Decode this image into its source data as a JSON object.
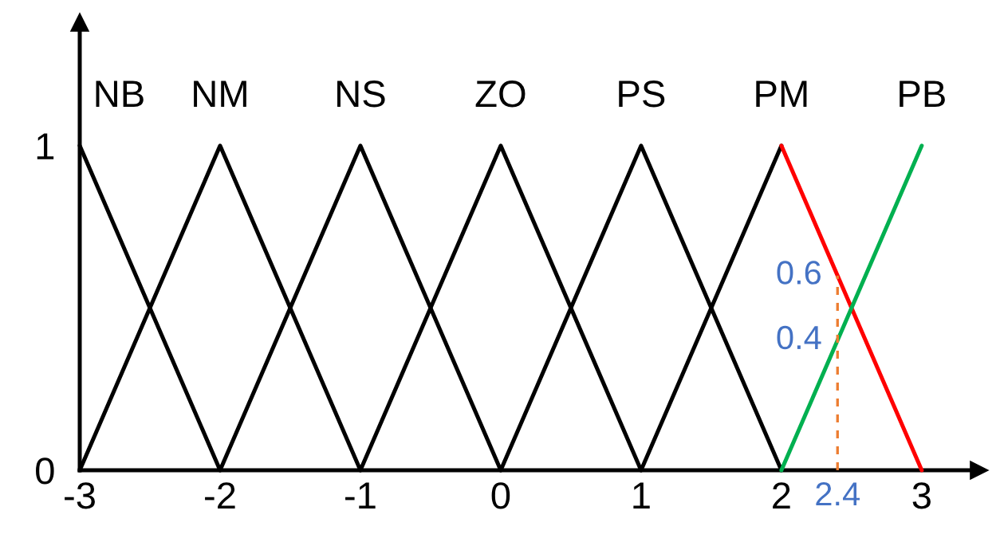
{
  "chart_data": {
    "type": "line",
    "xlim": [
      -3,
      3.41
    ],
    "ylim": [
      0,
      1.38
    ],
    "xticks": [
      -3,
      -2,
      -1,
      0,
      1,
      2,
      3
    ],
    "yticks": [
      0,
      1
    ],
    "grid": false,
    "legend": false,
    "marker": "none",
    "line_style": "solid",
    "series": [
      {
        "name": "NB",
        "color": "#000000",
        "x": [
          -3,
          -2
        ],
        "values": [
          1,
          0
        ]
      },
      {
        "name": "NM",
        "color": "#000000",
        "x": [
          -3,
          -2,
          -1
        ],
        "values": [
          0,
          1,
          0
        ]
      },
      {
        "name": "NS",
        "color": "#000000",
        "x": [
          -2,
          -1,
          0
        ],
        "values": [
          0,
          1,
          0
        ]
      },
      {
        "name": "ZO",
        "color": "#000000",
        "x": [
          -1,
          0,
          1
        ],
        "values": [
          0,
          1,
          0
        ]
      },
      {
        "name": "PS",
        "color": "#000000",
        "x": [
          0,
          1,
          2
        ],
        "values": [
          0,
          1,
          0
        ]
      },
      {
        "name": "PM",
        "color": "#000000",
        "x": [
          1,
          2
        ],
        "values": [
          0,
          1
        ]
      },
      {
        "color": "#ff0000",
        "x": [
          2,
          2.4,
          3
        ],
        "values": [
          1,
          0.6,
          0
        ],
        "value_labels": [
          null,
          "0.6",
          null
        ]
      },
      {
        "name": "PB",
        "color": "#00b050",
        "x": [
          2,
          2.4,
          3
        ],
        "values": [
          0,
          0.4,
          1
        ],
        "value_labels": [
          null,
          "0.4",
          null
        ]
      },
      {
        "color": "#ed7d31",
        "x": [
          2.4,
          2.4
        ],
        "values": [
          0,
          0.6
        ],
        "line_style": "dashed"
      }
    ],
    "annotations": [
      {
        "text": "2.4",
        "x": 2.4,
        "y": 0
      }
    ]
  }
}
